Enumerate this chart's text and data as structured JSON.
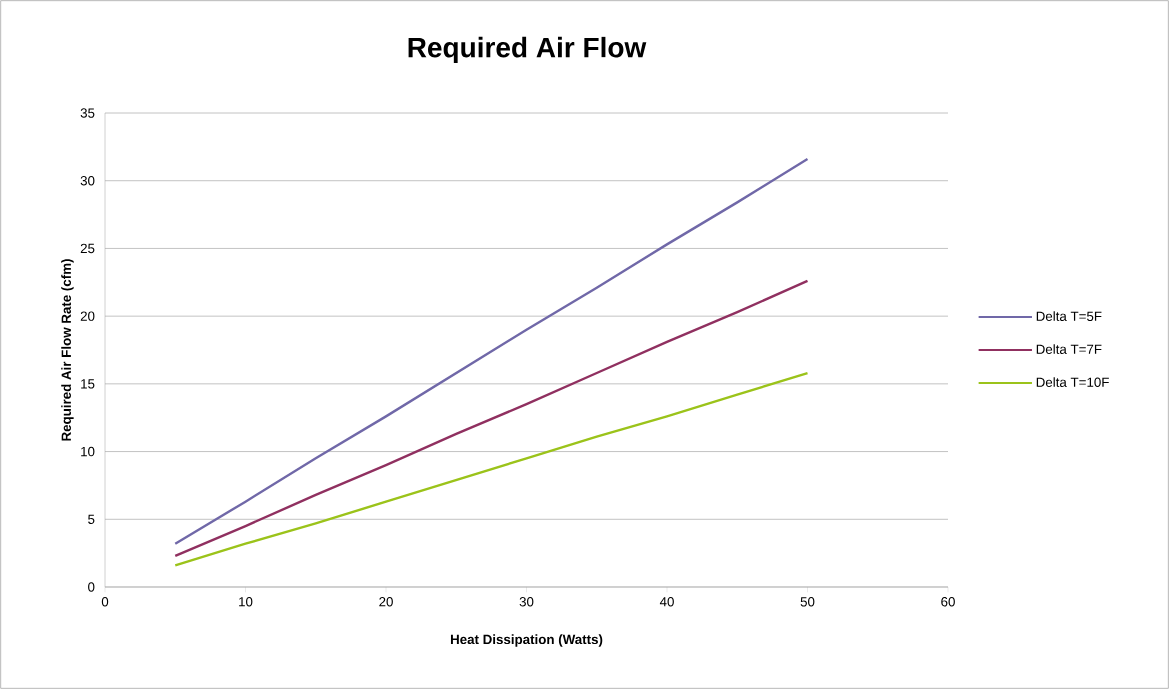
{
  "chart_data": {
    "type": "line",
    "title": "Required Air Flow",
    "xlabel": "Heat Dissipation (Watts)",
    "ylabel": "Required Air Flow Rate (cfm)",
    "x": [
      5,
      10,
      15,
      20,
      25,
      30,
      35,
      40,
      45,
      50
    ],
    "series": [
      {
        "name": "Delta T=5F",
        "color": "#7068a8",
        "values": [
          3.2,
          6.3,
          9.5,
          12.6,
          15.8,
          19.0,
          22.1,
          25.3,
          28.4,
          31.6
        ]
      },
      {
        "name": "Delta T=7F",
        "color": "#903060",
        "values": [
          2.3,
          4.5,
          6.8,
          9.0,
          11.3,
          13.5,
          15.8,
          18.1,
          20.3,
          22.6
        ]
      },
      {
        "name": "Delta T=10F",
        "color": "#9bc31a",
        "values": [
          1.6,
          3.2,
          4.7,
          6.3,
          7.9,
          9.5,
          11.1,
          12.6,
          14.2,
          15.8
        ]
      }
    ],
    "xlim": [
      0,
      60
    ],
    "xticks": [
      0,
      10,
      20,
      30,
      40,
      50,
      60
    ],
    "ylim": [
      0,
      35
    ],
    "yticks": [
      0,
      5,
      10,
      15,
      20,
      25,
      30,
      35
    ],
    "grid": "y",
    "legend": "right",
    "marker": "none",
    "line_style": "solid"
  }
}
